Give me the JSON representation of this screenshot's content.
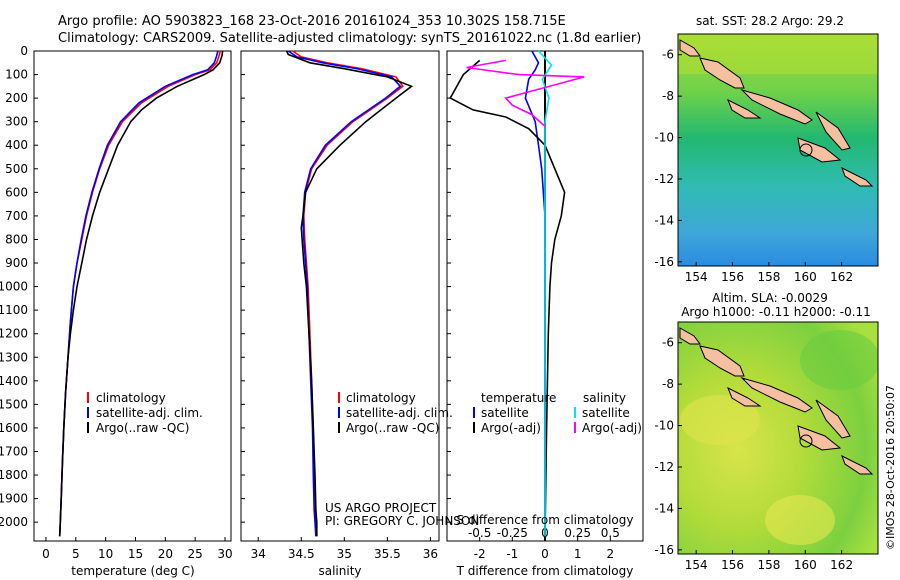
{
  "header": {
    "line1": "Argo profile: AO 5903823_168 23-Oct-2016 20161024_353 10.302S 158.715E",
    "line2": "Climatology: CARS2009. Satellite-adjusted climatology: synTS_20161022.nc (1.8d earlier)"
  },
  "colors": {
    "climatology": "#ff0000",
    "satellite": "#0000ff",
    "argo": "#000000",
    "sal_satellite": "#00e5ee",
    "sal_argo": "#ff00ff",
    "land": "#f4c0a0"
  },
  "depth_ticks": [
    "0",
    "100",
    "200",
    "300",
    "400",
    "500",
    "600",
    "700",
    "800",
    "900",
    "1000",
    "1100",
    "1200",
    "1300",
    "1400",
    "1500",
    "1600",
    "1700",
    "1800",
    "1900",
    "2000"
  ],
  "panel1": {
    "xlabel": "temperature (deg C)",
    "xticks": [
      "0",
      "5",
      "10",
      "15",
      "20",
      "25",
      "30"
    ],
    "legend": [
      "climatology",
      "satellite-adj. clim.",
      "Argo(..raw -QC)"
    ]
  },
  "panel2": {
    "xlabel": "salinity",
    "xticks": [
      "34",
      "34.5",
      "35",
      "35.5",
      "36"
    ],
    "legend": [
      "climatology",
      "satellite-adj. clim.",
      "Argo(..raw -QC)"
    ],
    "credit1": "US ARGO PROJECT",
    "credit2": "PI: GREGORY C. JOHNSON"
  },
  "panel3": {
    "xlabel": "T difference from climatology",
    "top_label": "S difference from climatology",
    "xticks_T": [
      "-2",
      "-1",
      "0",
      "1",
      "2"
    ],
    "xticks_S": [
      "-0.5",
      "-0.25",
      "0",
      "0.25",
      "0.5"
    ],
    "legend_T_title": "temperature",
    "legend_S_title": "salinity",
    "legend_T": [
      "satellite",
      "Argo(-adj)"
    ],
    "legend_S": [
      "satellite",
      "Argo(-adj)"
    ]
  },
  "map_sst": {
    "title": "sat. SST: 28.2 Argo: 29.2",
    "xticks": [
      "154",
      "156",
      "158",
      "160",
      "162"
    ],
    "yticks": [
      "-6",
      "-8",
      "-10",
      "-12",
      "-14",
      "-16"
    ]
  },
  "map_sla": {
    "title1": "Altim. SLA: -0.0029",
    "title2": "Argo h1000: -0.11 h2000: -0.11",
    "xticks": [
      "154",
      "156",
      "158",
      "160",
      "162"
    ],
    "yticks": [
      "-6",
      "-8",
      "-10",
      "-12",
      "-14",
      "-16"
    ]
  },
  "stamp": "©IMOS 28-Oct-2016 20:50:07",
  "chart_data": [
    {
      "type": "line",
      "xlabel": "temperature (deg C)",
      "ylabel": "",
      "xlim": [
        -2,
        31
      ],
      "ylim": [
        2080,
        0
      ],
      "series": [
        {
          "name": "climatology",
          "x": [
            29.2,
            29.0,
            28.6,
            27.5,
            25.0,
            20.5,
            16.0,
            12.8,
            10.5,
            9.0,
            7.8,
            6.8,
            6.0,
            5.2,
            4.6,
            4.1,
            3.7,
            3.3,
            3.0,
            2.75,
            2.55,
            2.4,
            2.3
          ],
          "depth": [
            0,
            20,
            50,
            80,
            100,
            150,
            220,
            300,
            400,
            500,
            600,
            700,
            800,
            900,
            1000,
            1150,
            1300,
            1450,
            1600,
            1750,
            1900,
            2000,
            2060
          ]
        },
        {
          "name": "satellite-adj. clim.",
          "x": [
            28.8,
            28.6,
            28.2,
            27.1,
            24.6,
            20.0,
            15.6,
            12.5,
            10.3,
            8.9,
            7.7,
            6.7,
            5.9,
            5.2,
            4.6,
            4.1,
            3.7,
            3.3,
            3.0,
            2.75,
            2.55,
            2.4,
            2.3
          ],
          "depth": [
            0,
            20,
            50,
            80,
            100,
            150,
            220,
            300,
            400,
            500,
            600,
            700,
            800,
            900,
            1000,
            1150,
            1300,
            1450,
            1600,
            1750,
            1900,
            2000,
            2060
          ]
        },
        {
          "name": "Argo(..raw -QC)",
          "x": [
            29.6,
            29.5,
            29.1,
            28.0,
            26.5,
            22.0,
            18.5,
            16.0,
            14.2,
            12.0,
            10.5,
            9.0,
            7.8,
            6.8,
            6.0,
            5.2,
            4.6,
            4.1,
            3.7,
            3.3,
            3.0,
            2.75,
            2.55,
            2.4,
            2.3
          ],
          "depth": [
            0,
            20,
            50,
            80,
            100,
            150,
            200,
            250,
            300,
            400,
            500,
            600,
            700,
            800,
            900,
            1000,
            1100,
            1200,
            1300,
            1450,
            1600,
            1750,
            1900,
            2000,
            2060
          ]
        }
      ]
    },
    {
      "type": "line",
      "xlabel": "salinity",
      "ylabel": "",
      "xlim": [
        33.8,
        36.1
      ],
      "ylim": [
        2080,
        0
      ],
      "series": [
        {
          "name": "climatology",
          "x": [
            34.4,
            34.5,
            34.8,
            35.2,
            35.6,
            35.68,
            35.5,
            35.1,
            34.8,
            34.62,
            34.55,
            34.53,
            34.54,
            34.56,
            34.58,
            34.6,
            34.62,
            34.64,
            34.65,
            34.66,
            34.67,
            34.68
          ],
          "depth": [
            0,
            25,
            50,
            75,
            110,
            150,
            200,
            300,
            400,
            500,
            600,
            700,
            800,
            900,
            1000,
            1200,
            1400,
            1600,
            1800,
            1950,
            2000,
            2060
          ]
        },
        {
          "name": "satellite-adj. clim.",
          "x": [
            34.35,
            34.45,
            34.75,
            35.15,
            35.55,
            35.65,
            35.48,
            35.08,
            34.78,
            34.61,
            34.54,
            34.52,
            34.53,
            34.55,
            34.57,
            34.59,
            34.61,
            34.63,
            34.64,
            34.65,
            34.66,
            34.67
          ],
          "depth": [
            0,
            25,
            50,
            75,
            110,
            150,
            200,
            300,
            400,
            500,
            600,
            700,
            800,
            900,
            1000,
            1200,
            1400,
            1600,
            1800,
            1950,
            2000,
            2060
          ]
        },
        {
          "name": "Argo(..raw -QC)",
          "x": [
            34.33,
            34.35,
            34.6,
            35.0,
            35.5,
            35.78,
            35.6,
            35.25,
            34.95,
            34.68,
            34.55,
            34.52,
            34.5,
            34.53,
            34.56,
            34.59,
            34.62,
            34.64,
            34.66,
            34.67,
            34.68,
            34.68
          ],
          "depth": [
            0,
            15,
            50,
            75,
            110,
            150,
            200,
            300,
            400,
            500,
            600,
            700,
            750,
            900,
            1000,
            1200,
            1400,
            1600,
            1800,
            1950,
            2000,
            2060
          ]
        }
      ]
    },
    {
      "type": "line",
      "xlabel": "T difference from climatology",
      "top_label": "S difference from climatology",
      "xlim_T": [
        -3,
        3
      ],
      "xlim_S": [
        -0.75,
        0.75
      ],
      "ylim": [
        2080,
        0
      ],
      "series": [
        {
          "name": "temperature satellite",
          "axis": "T",
          "x": [
            -0.4,
            -0.2,
            -0.3,
            -0.5,
            -0.6,
            -0.3,
            -0.2,
            -0.1,
            0.0,
            0.0,
            0.0,
            0.0,
            0.0
          ],
          "depth": [
            0,
            50,
            80,
            120,
            200,
            300,
            400,
            500,
            700,
            900,
            1200,
            1600,
            2060
          ]
        },
        {
          "name": "temperature Argo(-adj)",
          "axis": "T",
          "x": [
            -2.0,
            -2.5,
            -2.9,
            -2.2,
            -1.2,
            -0.5,
            0.0,
            0.3,
            0.6,
            0.5,
            0.3,
            0.2,
            0.15,
            0.1,
            0.05,
            0.0
          ],
          "depth": [
            40,
            100,
            200,
            250,
            280,
            330,
            400,
            500,
            600,
            700,
            800,
            900,
            1000,
            1200,
            1600,
            2060
          ]
        },
        {
          "name": "salinity satellite",
          "axis": "S",
          "x": [
            -0.05,
            0.05,
            -0.02,
            0.03,
            0.0,
            0.0,
            0.0,
            0.0
          ],
          "depth": [
            0,
            60,
            120,
            200,
            300,
            500,
            1000,
            2060
          ]
        },
        {
          "name": "salinity Argo(-adj)",
          "axis": "S",
          "x": [
            -0.3,
            -0.6,
            -0.2,
            0.3,
            0.1,
            -0.1,
            -0.3,
            -0.25,
            -0.1,
            0.0
          ],
          "depth": [
            40,
            70,
            100,
            110,
            140,
            170,
            200,
            230,
            270,
            320
          ]
        }
      ]
    }
  ]
}
